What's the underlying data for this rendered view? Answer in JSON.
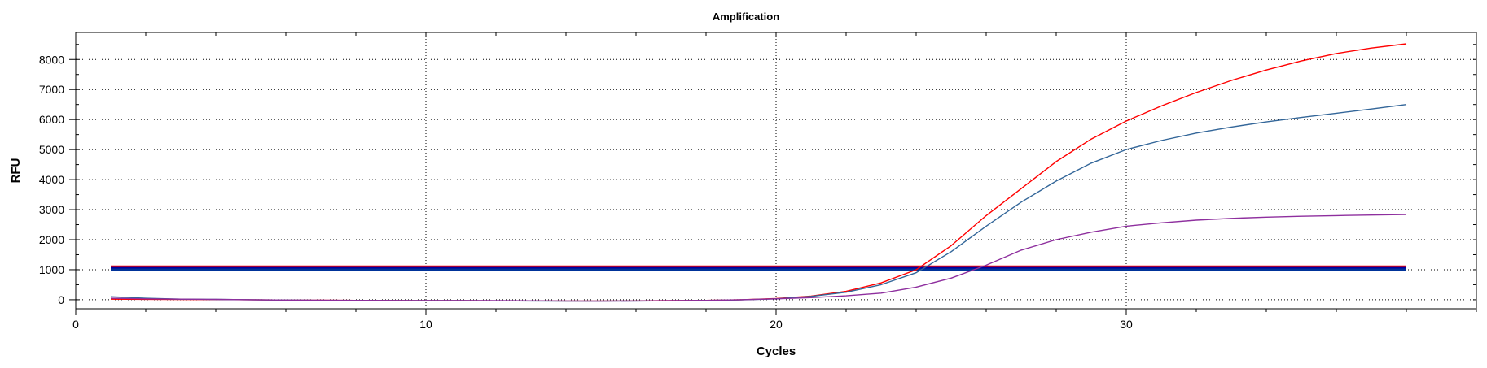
{
  "chart_data": {
    "type": "line",
    "title": "Amplification",
    "xlabel": "Cycles",
    "ylabel": "RFU",
    "xlim": [
      0,
      40
    ],
    "ylim": [
      -300,
      8900
    ],
    "x_ticks": [
      0,
      10,
      20,
      30
    ],
    "y_ticks": [
      0,
      1000,
      2000,
      3000,
      4000,
      5000,
      6000,
      7000,
      8000
    ],
    "grid": true,
    "x": [
      1,
      2,
      3,
      4,
      5,
      6,
      7,
      8,
      9,
      10,
      11,
      12,
      13,
      14,
      15,
      16,
      17,
      18,
      19,
      20,
      21,
      22,
      23,
      24,
      25,
      26,
      27,
      28,
      29,
      30,
      31,
      32,
      33,
      34,
      35,
      36,
      37,
      38
    ],
    "series": [
      {
        "color": "#ff0000",
        "values": [
          20,
          15,
          10,
          5,
          0,
          -10,
          -15,
          -20,
          -25,
          -30,
          -30,
          -35,
          -35,
          -40,
          -40,
          -35,
          -30,
          -20,
          0,
          40,
          120,
          280,
          560,
          1000,
          1800,
          2800,
          3700,
          4600,
          5350,
          5950,
          6450,
          6900,
          7300,
          7650,
          7950,
          8200,
          8380,
          8520
        ]
      },
      {
        "color": "#336699",
        "values": [
          100,
          50,
          20,
          10,
          0,
          -10,
          -20,
          -25,
          -30,
          -30,
          -30,
          -35,
          -40,
          -45,
          -45,
          -40,
          -35,
          -25,
          -5,
          30,
          110,
          250,
          500,
          900,
          1600,
          2450,
          3250,
          3950,
          4550,
          5000,
          5300,
          5550,
          5750,
          5920,
          6070,
          6210,
          6350,
          6500
        ]
      },
      {
        "color": "#8e2f9e",
        "values": [
          50,
          30,
          20,
          10,
          0,
          -10,
          -15,
          -20,
          -25,
          -30,
          -30,
          -30,
          -35,
          -40,
          -45,
          -40,
          -30,
          -20,
          0,
          30,
          70,
          130,
          220,
          420,
          720,
          1150,
          1650,
          2000,
          2250,
          2450,
          2560,
          2650,
          2710,
          2750,
          2780,
          2800,
          2820,
          2840
        ]
      }
    ],
    "thresholds": [
      {
        "value": 1100,
        "color": "#ff0000",
        "x_start": 1,
        "x_end": 38
      },
      {
        "value": 1050,
        "color": "#0000a0",
        "x_start": 1,
        "x_end": 38
      },
      {
        "value": 1000,
        "color": "#003399",
        "x_start": 1,
        "x_end": 38
      }
    ]
  }
}
